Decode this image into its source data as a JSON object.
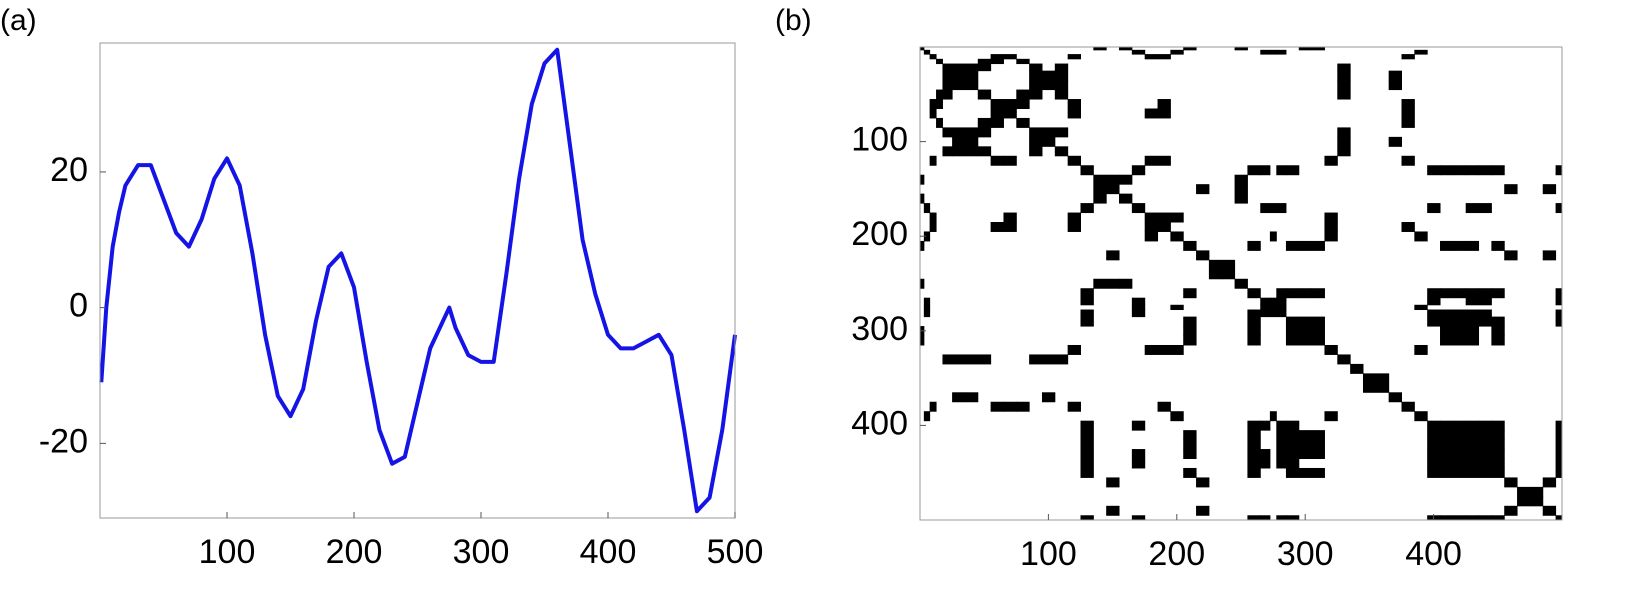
{
  "chart_data": [
    {
      "type": "line",
      "label": "(a)",
      "x": [
        1,
        5,
        10,
        15,
        20,
        30,
        40,
        50,
        60,
        70,
        80,
        90,
        100,
        110,
        120,
        130,
        140,
        150,
        160,
        170,
        180,
        190,
        200,
        210,
        220,
        230,
        240,
        250,
        260,
        270,
        275,
        280,
        290,
        300,
        310,
        320,
        330,
        340,
        350,
        360,
        370,
        380,
        390,
        400,
        410,
        420,
        430,
        440,
        450,
        460,
        470,
        480,
        490,
        500
      ],
      "values": [
        -11,
        0,
        9,
        14,
        18,
        21,
        21,
        16,
        11,
        9,
        13,
        19,
        22,
        18,
        8,
        -4,
        -13,
        -16,
        -12,
        -2,
        6,
        8,
        3,
        -8,
        -18,
        -23,
        -22,
        -14,
        -6,
        -2,
        0,
        -3,
        -7,
        -8,
        -8,
        5,
        19,
        30,
        36,
        38,
        24,
        10,
        2,
        -4,
        -6,
        -6,
        -5,
        -4,
        -7,
        -18,
        -30,
        -28,
        -18,
        -4
      ],
      "color": "#1414e6",
      "xlim": [
        0,
        500
      ],
      "xticks": [
        100,
        200,
        300,
        400,
        500
      ],
      "ylim": [
        -31,
        39
      ],
      "yticks": [
        -20,
        0,
        20
      ]
    },
    {
      "type": "recurrence",
      "label": "(b)",
      "threshold": 3,
      "color": "#000000",
      "xlim": [
        0,
        500
      ],
      "xticks": [
        100,
        200,
        300,
        400
      ],
      "ylim": [
        500,
        0
      ],
      "yticks": [
        100,
        200,
        300,
        400
      ]
    }
  ]
}
